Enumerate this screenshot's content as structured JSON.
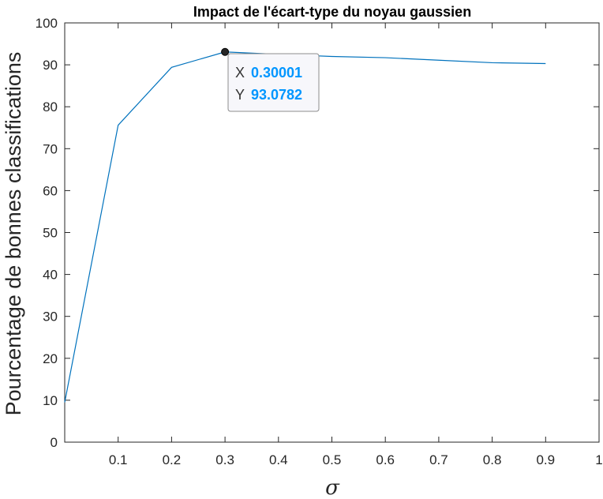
{
  "chart_data": {
    "type": "line",
    "title": "Impact de l'écart-type du noyau gaussien",
    "xlabel": "σ",
    "ylabel": "Pourcentage de bonnes classifications",
    "xlim": [
      0,
      1
    ],
    "ylim": [
      0,
      100
    ],
    "x_ticks": [
      "0.1",
      "0.2",
      "0.3",
      "0.4",
      "0.5",
      "0.6",
      "0.7",
      "0.8",
      "0.9",
      "1"
    ],
    "y_ticks": [
      "0",
      "10",
      "20",
      "30",
      "40",
      "50",
      "60",
      "70",
      "80",
      "90",
      "100"
    ],
    "series": [
      {
        "x": [
          0.0,
          0.1,
          0.2,
          0.3,
          0.4,
          0.5,
          0.6,
          0.7,
          0.8,
          0.9
        ],
        "y": [
          9.5,
          75.6,
          89.4,
          93.0782,
          92.5,
          92.0,
          91.7,
          91.1,
          90.5,
          90.3
        ]
      }
    ],
    "grid": false,
    "line_color": "#0072BD",
    "datatip": {
      "x": 0.30001,
      "y": 93.0782,
      "x_label": "X",
      "y_label": "Y",
      "x_text": "0.30001",
      "y_text": "93.0782",
      "value_color": "#0096FF"
    }
  }
}
